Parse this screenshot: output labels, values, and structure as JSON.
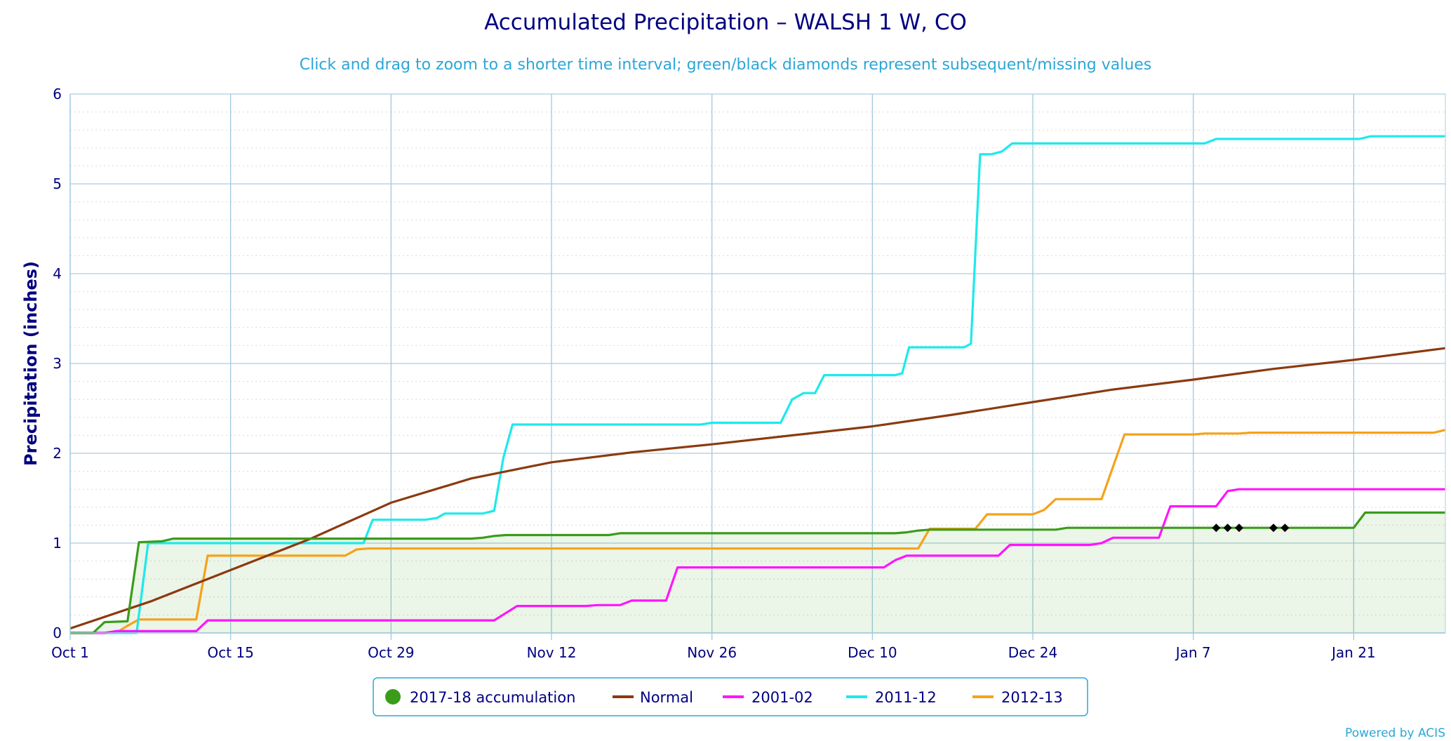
{
  "chart_data": {
    "type": "line",
    "title": "Accumulated Precipitation – WALSH 1 W, CO",
    "subtitle": "Click and drag to zoom to a shorter time interval; green/black diamonds represent subsequent/missing values",
    "xlabel": "",
    "ylabel": "Precipitation (inches)",
    "x_unit": "days",
    "xlim": [
      0,
      120
    ],
    "ylim": [
      0,
      6
    ],
    "x_ticks": [
      {
        "x": 0,
        "label": "Oct 1"
      },
      {
        "x": 14,
        "label": "Oct 15"
      },
      {
        "x": 28,
        "label": "Oct 29"
      },
      {
        "x": 42,
        "label": "Nov 12"
      },
      {
        "x": 56,
        "label": "Nov 26"
      },
      {
        "x": 70,
        "label": "Dec 10"
      },
      {
        "x": 84,
        "label": "Dec 24"
      },
      {
        "x": 98,
        "label": "Jan 7"
      },
      {
        "x": 112,
        "label": "Jan 21"
      }
    ],
    "y_ticks": [
      0,
      1,
      2,
      3,
      4,
      5,
      6
    ],
    "grid": true,
    "legend_position": "bottom-center",
    "credit": "Powered by ACIS",
    "series": [
      {
        "name": "2017-18 accumulation",
        "key": "s2017",
        "color": "#3a9c1a",
        "fill": true,
        "legend_marker": "circle",
        "points": [
          [
            0,
            0
          ],
          [
            2,
            0
          ],
          [
            3,
            0.12
          ],
          [
            5,
            0.13
          ],
          [
            6,
            1.01
          ],
          [
            8,
            1.02
          ],
          [
            9,
            1.05
          ],
          [
            25,
            1.05
          ],
          [
            35,
            1.05
          ],
          [
            36,
            1.06
          ],
          [
            37,
            1.08
          ],
          [
            38,
            1.09
          ],
          [
            47,
            1.09
          ],
          [
            48,
            1.11
          ],
          [
            72,
            1.11
          ],
          [
            73,
            1.12
          ],
          [
            74,
            1.14
          ],
          [
            75,
            1.15
          ],
          [
            86,
            1.15
          ],
          [
            87,
            1.17
          ],
          [
            112,
            1.17
          ],
          [
            113,
            1.34
          ],
          [
            120,
            1.34
          ]
        ]
      },
      {
        "name": "Normal",
        "key": "normal",
        "color": "#8b3a10",
        "fill": false,
        "legend_marker": "line",
        "points": [
          [
            0,
            0.05
          ],
          [
            7,
            0.35
          ],
          [
            14,
            0.7
          ],
          [
            21,
            1.05
          ],
          [
            28,
            1.45
          ],
          [
            35,
            1.72
          ],
          [
            42,
            1.9
          ],
          [
            49,
            2.01
          ],
          [
            56,
            2.1
          ],
          [
            63,
            2.2
          ],
          [
            70,
            2.3
          ],
          [
            77,
            2.43
          ],
          [
            84,
            2.57
          ],
          [
            91,
            2.71
          ],
          [
            98,
            2.82
          ],
          [
            105,
            2.94
          ],
          [
            112,
            3.04
          ],
          [
            120,
            3.17
          ]
        ]
      },
      {
        "name": "2001-02",
        "key": "s2001",
        "color": "#ff14ff",
        "fill": false,
        "legend_marker": "line",
        "points": [
          [
            0,
            0
          ],
          [
            3,
            0
          ],
          [
            4,
            0.02
          ],
          [
            11,
            0.02
          ],
          [
            12,
            0.14
          ],
          [
            37,
            0.14
          ],
          [
            38,
            0.22
          ],
          [
            39,
            0.3
          ],
          [
            45,
            0.3
          ],
          [
            46,
            0.31
          ],
          [
            48,
            0.31
          ],
          [
            49,
            0.36
          ],
          [
            52,
            0.36
          ],
          [
            53,
            0.73
          ],
          [
            71,
            0.73
          ],
          [
            72,
            0.81
          ],
          [
            73,
            0.86
          ],
          [
            81,
            0.86
          ],
          [
            82,
            0.98
          ],
          [
            89,
            0.98
          ],
          [
            90,
            1.0
          ],
          [
            91,
            1.06
          ],
          [
            95,
            1.06
          ],
          [
            96,
            1.41
          ],
          [
            100,
            1.41
          ],
          [
            101,
            1.58
          ],
          [
            102,
            1.6
          ],
          [
            120,
            1.6
          ]
        ]
      },
      {
        "name": "2011-12",
        "key": "s2011",
        "color": "#1de9ec",
        "fill": false,
        "legend_marker": "line",
        "points": [
          [
            0,
            0
          ],
          [
            5.8,
            0
          ],
          [
            6.8,
            1.0
          ],
          [
            25,
            1.0
          ],
          [
            25.6,
            1.0
          ],
          [
            26.4,
            1.26
          ],
          [
            31,
            1.26
          ],
          [
            32,
            1.28
          ],
          [
            32.7,
            1.33
          ],
          [
            36,
            1.33
          ],
          [
            37,
            1.36
          ],
          [
            37.8,
            1.95
          ],
          [
            38.6,
            2.32
          ],
          [
            55,
            2.32
          ],
          [
            56,
            2.34
          ],
          [
            62,
            2.34
          ],
          [
            63,
            2.6
          ],
          [
            64,
            2.67
          ],
          [
            65,
            2.67
          ],
          [
            65.8,
            2.87
          ],
          [
            72,
            2.87
          ],
          [
            72.6,
            2.89
          ],
          [
            73.2,
            3.18
          ],
          [
            78,
            3.18
          ],
          [
            78.6,
            3.22
          ],
          [
            79.4,
            5.33
          ],
          [
            80.4,
            5.33
          ],
          [
            81.3,
            5.36
          ],
          [
            82.2,
            5.45
          ],
          [
            99,
            5.45
          ],
          [
            100,
            5.5
          ],
          [
            112.5,
            5.5
          ],
          [
            113.5,
            5.53
          ],
          [
            120,
            5.53
          ]
        ]
      },
      {
        "name": "2012-13",
        "key": "s2012",
        "color": "#f5a21a",
        "fill": false,
        "legend_marker": "line",
        "points": [
          [
            0,
            0
          ],
          [
            4,
            0
          ],
          [
            5,
            0.08
          ],
          [
            6,
            0.15
          ],
          [
            11,
            0.15
          ],
          [
            12,
            0.86
          ],
          [
            24,
            0.86
          ],
          [
            25,
            0.93
          ],
          [
            26,
            0.94
          ],
          [
            74,
            0.94
          ],
          [
            75,
            1.16
          ],
          [
            79,
            1.16
          ],
          [
            80,
            1.32
          ],
          [
            84,
            1.32
          ],
          [
            85,
            1.37
          ],
          [
            86,
            1.49
          ],
          [
            90,
            1.49
          ],
          [
            91,
            1.85
          ],
          [
            92,
            2.21
          ],
          [
            98,
            2.21
          ],
          [
            99,
            2.22
          ],
          [
            102,
            2.22
          ],
          [
            103,
            2.23
          ],
          [
            119,
            2.23
          ],
          [
            120,
            2.26
          ]
        ]
      }
    ],
    "missing_markers": {
      "color": "#000000",
      "x": [
        100,
        101,
        102,
        105,
        106
      ],
      "y": 1.17
    }
  }
}
